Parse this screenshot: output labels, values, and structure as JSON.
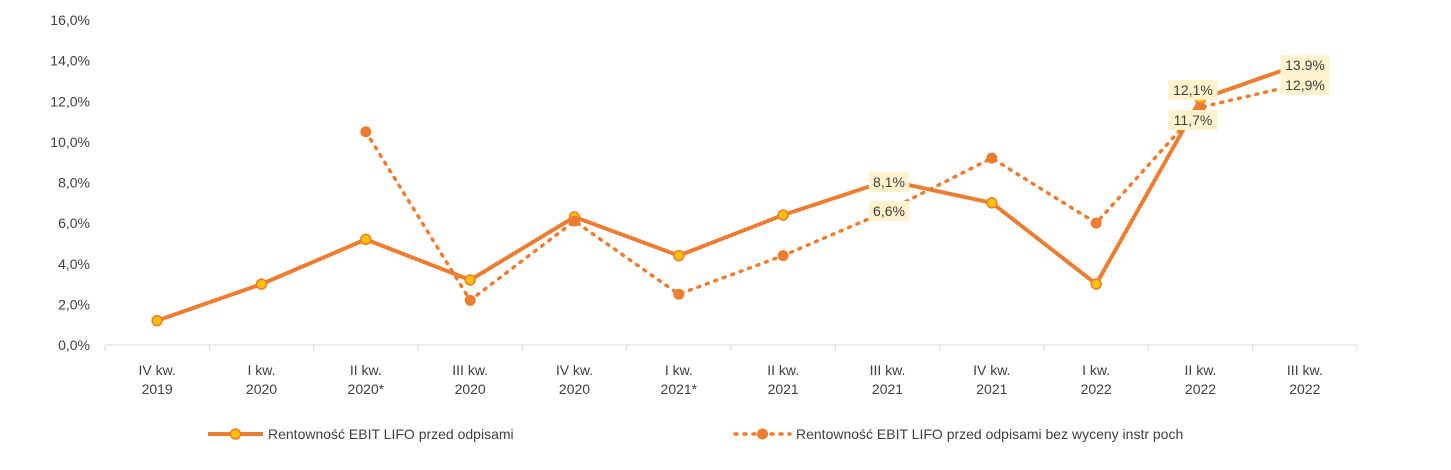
{
  "chart_data": {
    "type": "line",
    "categories": [
      [
        "IV kw.",
        "2019"
      ],
      [
        "I kw.",
        "2020"
      ],
      [
        "II kw.",
        "2020*"
      ],
      [
        "III kw.",
        "2020"
      ],
      [
        "IV kw.",
        "2020"
      ],
      [
        "I kw.",
        "2021*"
      ],
      [
        "II kw.",
        "2021"
      ],
      [
        "III kw.",
        "2021"
      ],
      [
        "IV kw.",
        "2021"
      ],
      [
        "I kw.",
        "2022"
      ],
      [
        "II kw.",
        "2022"
      ],
      [
        "III kw.",
        "2022"
      ]
    ],
    "y_ticks": [
      "0,0%",
      "2,0%",
      "4,0%",
      "6,0%",
      "8,0%",
      "10,0%",
      "12,0%",
      "14,0%",
      "16,0%"
    ],
    "ylim": [
      0,
      16
    ],
    "series": [
      {
        "name": "Rentowność EBIT LIFO przed odpisami",
        "style": "solid",
        "color": "#ED7D31",
        "marker_fill": "#FFC000",
        "values": [
          1.2,
          3.0,
          5.2,
          3.2,
          6.3,
          4.4,
          6.4,
          8.1,
          7.0,
          3.0,
          12.1,
          13.9
        ],
        "labels": [
          {
            "index": 7,
            "text": "8,1%"
          },
          {
            "index": 10,
            "text": "12,1%"
          },
          {
            "index": 11,
            "text": "13.9%"
          }
        ]
      },
      {
        "name": "Rentowność EBIT LIFO przed odpisami bez wyceny instr poch",
        "style": "dotted",
        "color": "#ED7D31",
        "marker_fill": "#ED7D31",
        "values": [
          null,
          null,
          10.5,
          2.2,
          6.1,
          2.5,
          4.4,
          6.6,
          9.2,
          6.0,
          11.7,
          12.9
        ],
        "labels": [
          {
            "index": 7,
            "text": "6,6%"
          },
          {
            "index": 10,
            "text": "11,7%"
          },
          {
            "index": 11,
            "text": "12,9%"
          }
        ]
      }
    ],
    "grid": false,
    "legend_position": "bottom",
    "label_box_color": "#FFF2CC"
  }
}
